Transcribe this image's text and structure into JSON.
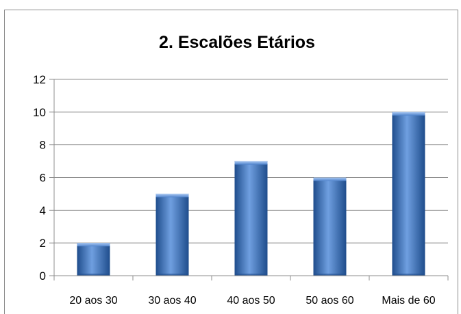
{
  "chart_data": {
    "type": "bar",
    "title": "2. Escalões Etários",
    "categories": [
      "20 aos 30",
      "30 aos 40",
      "40 aos 50",
      "50 aos 60",
      "Mais de 60"
    ],
    "values": [
      2,
      5,
      7,
      6,
      10
    ],
    "yticks": [
      "0",
      "2",
      "4",
      "6",
      "8",
      "10",
      "12"
    ],
    "ylim": [
      0,
      12
    ],
    "xlabel": "",
    "ylabel": "",
    "grid": true,
    "legend": "none",
    "colors": {
      "bar": "#3a6fb8",
      "bar_light": "#6f9fe0",
      "bar_dark": "#1f4d8c",
      "grid": "#8c8c8c",
      "frame": "#8a8a8a"
    }
  }
}
